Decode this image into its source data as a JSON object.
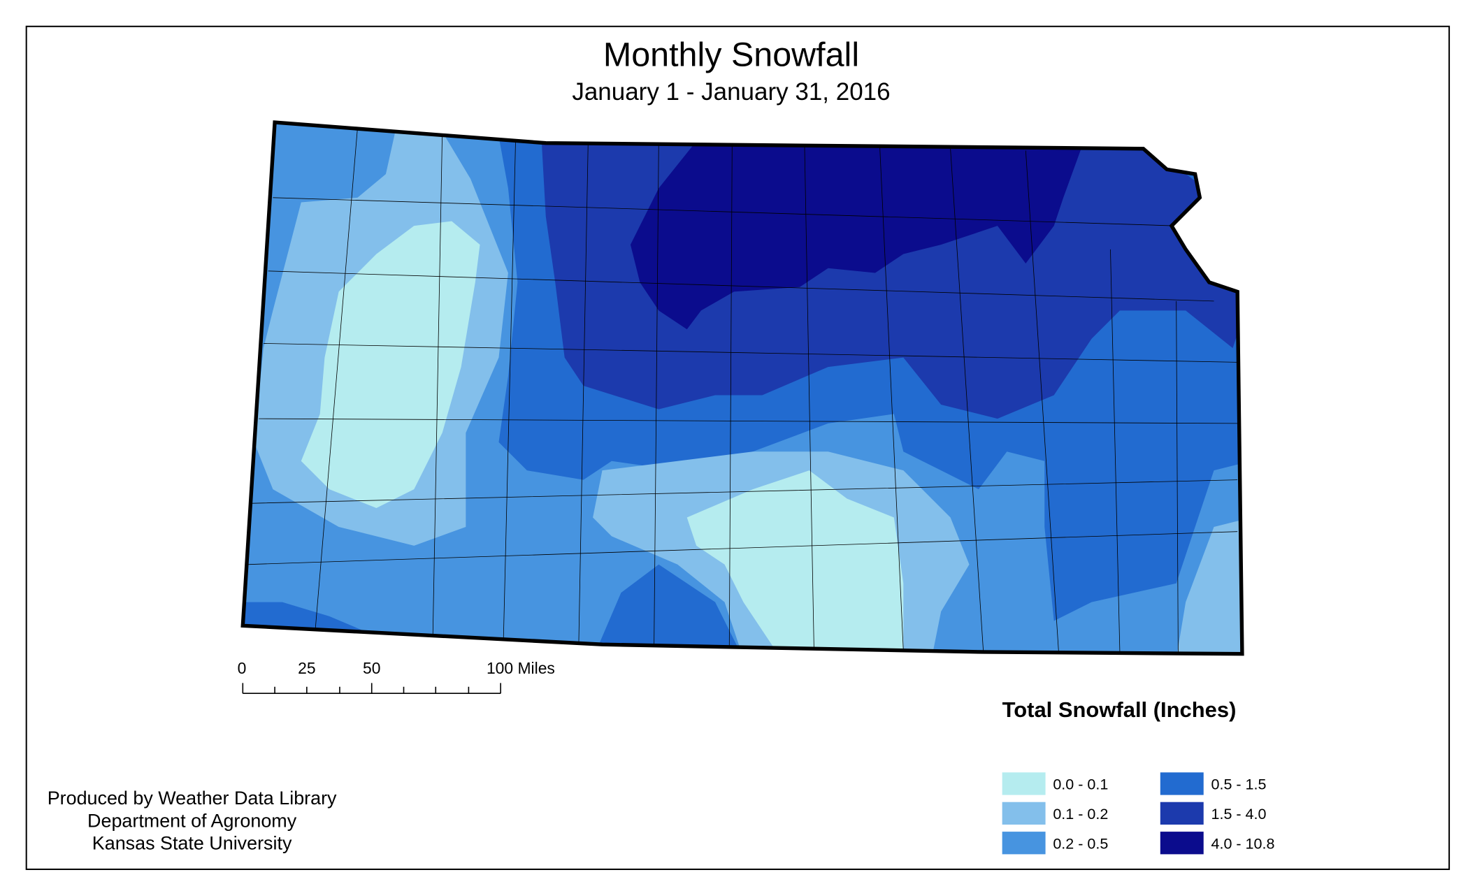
{
  "title": "Monthly Snowfall",
  "subtitle": "January 1 - January 31, 2016",
  "scale_bar": {
    "labels": [
      "0",
      "25",
      "50",
      "100 Miles"
    ]
  },
  "legend": {
    "title": "Total Snowfall (Inches)",
    "classes": [
      {
        "label": "0.0 - 0.1",
        "color": "#B5ECEF"
      },
      {
        "label": "0.1 - 0.2",
        "color": "#83BFEB"
      },
      {
        "label": "0.2 - 0.5",
        "color": "#4794E0"
      },
      {
        "label": "0.5 - 1.5",
        "color": "#226BD0"
      },
      {
        "label": "1.5 - 4.0",
        "color": "#1C3AAD"
      },
      {
        "label": "4.0 - 10.8",
        "color": "#0B0C8D"
      }
    ]
  },
  "credits": [
    "Produced by Weather Data Library",
    "Department of Agronomy",
    "Kansas State University"
  ]
}
